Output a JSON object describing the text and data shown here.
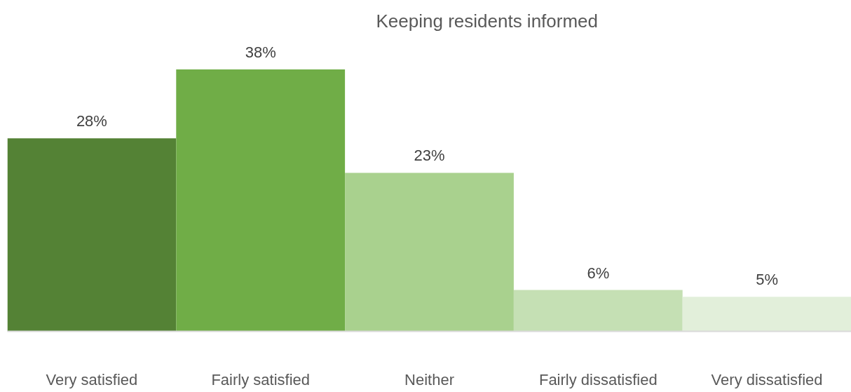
{
  "chart_data": {
    "type": "bar",
    "title": "Keeping residents informed",
    "categories": [
      "Very satisfied",
      "Fairly satisfied",
      "Neither",
      "Fairly dissatisfied",
      "Very dissatisfied"
    ],
    "values": [
      28,
      38,
      23,
      6,
      5
    ],
    "colors": [
      "#548235",
      "#70ad47",
      "#a9d18e",
      "#c5e0b4",
      "#e2efda"
    ],
    "value_labels": [
      "28%",
      "38%",
      "23%",
      "6%",
      "5%"
    ],
    "tick_labels": "x"
  }
}
